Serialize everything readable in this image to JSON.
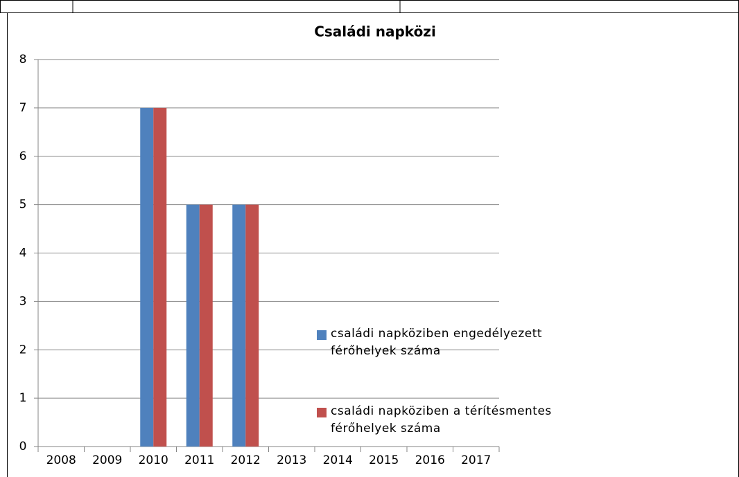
{
  "chart_data": {
    "type": "bar",
    "title": "Családi napközi",
    "categories": [
      "2008",
      "2009",
      "2010",
      "2011",
      "2012",
      "2013",
      "2014",
      "2015",
      "2016",
      "2017"
    ],
    "series": [
      {
        "name": "családi napköziben engedélyezett férőhelyek száma",
        "color": "#4f81bd",
        "values": [
          null,
          null,
          7,
          5,
          5,
          null,
          null,
          null,
          null,
          null
        ]
      },
      {
        "name": "családi napköziben a térítésmentes férőhelyek száma",
        "color": "#c0504d",
        "values": [
          null,
          null,
          7,
          5,
          5,
          null,
          null,
          null,
          null,
          null
        ]
      }
    ],
    "ylim": [
      0,
      8
    ],
    "yticks": [
      0,
      1,
      2,
      3,
      4,
      5,
      6,
      7,
      8
    ],
    "grid": true,
    "legend": "right"
  }
}
